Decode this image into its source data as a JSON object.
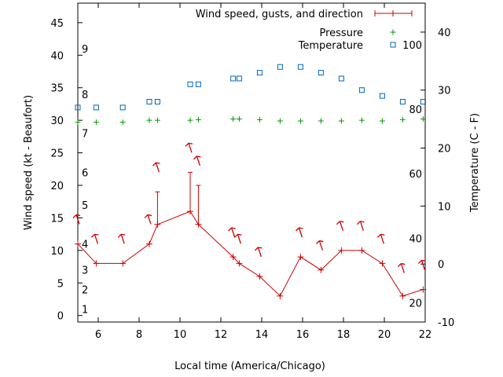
{
  "chart_data": {
    "type": "line",
    "xlabel": "Local time (America/Chicago)",
    "ylabel_left": "Wind speed (kt - Beaufort)",
    "ylabel_right": "Temperature (C - F)",
    "xlim": [
      5,
      22
    ],
    "xticks": [
      6,
      8,
      10,
      12,
      14,
      16,
      18,
      20,
      22
    ],
    "ylim_left": [
      -1,
      48
    ],
    "yticks_left": [
      0,
      5,
      10,
      15,
      20,
      25,
      30,
      35,
      40,
      45
    ],
    "ylim_right": [
      -10,
      45
    ],
    "yticks_right": [
      -10,
      0,
      10,
      20,
      30,
      40
    ],
    "beaufort_labels": [
      {
        "label": "1",
        "y": 1
      },
      {
        "label": "2",
        "y": 4
      },
      {
        "label": "3",
        "y": 7
      },
      {
        "label": "4",
        "y": 11
      },
      {
        "label": "5",
        "y": 17
      },
      {
        "label": "6",
        "y": 22
      },
      {
        "label": "7",
        "y": 28
      },
      {
        "label": "8",
        "y": 34
      },
      {
        "label": "9",
        "y": 41
      }
    ],
    "fahrenheit_labels": [
      {
        "label": "20",
        "y": -6.7
      },
      {
        "label": "40",
        "y": 4.4
      },
      {
        "label": "60",
        "y": 15.6
      },
      {
        "label": "80",
        "y": 26.7
      },
      {
        "label": "100",
        "y": 37.8
      }
    ],
    "legend": {
      "position": "top-right",
      "entries": [
        {
          "label": "Wind speed, gusts, and direction",
          "color": "#cc0000",
          "symbol": "errorbar"
        },
        {
          "label": "Pressure",
          "color": "#009900",
          "symbol": "plus"
        },
        {
          "label": "Temperature",
          "color": "#0066bb",
          "symbol": "square"
        }
      ]
    },
    "series": [
      {
        "name": "Wind speed, gusts, and direction",
        "axis": "left",
        "color": "#cc0000",
        "points": [
          {
            "x": 5.0,
            "y": 11
          },
          {
            "x": 5.9,
            "y": 8
          },
          {
            "x": 7.2,
            "y": 8
          },
          {
            "x": 8.5,
            "y": 11
          },
          {
            "x": 8.9,
            "y": 14,
            "gust": 19
          },
          {
            "x": 10.5,
            "y": 16,
            "gust": 22
          },
          {
            "x": 10.9,
            "y": 14,
            "gust": 20
          },
          {
            "x": 12.6,
            "y": 9
          },
          {
            "x": 12.9,
            "y": 8
          },
          {
            "x": 13.9,
            "y": 6
          },
          {
            "x": 14.9,
            "y": 3
          },
          {
            "x": 15.9,
            "y": 9
          },
          {
            "x": 16.9,
            "y": 7
          },
          {
            "x": 17.9,
            "y": 10
          },
          {
            "x": 18.9,
            "y": 10
          },
          {
            "x": 19.9,
            "y": 8
          },
          {
            "x": 20.9,
            "y": 3
          },
          {
            "x": 21.9,
            "y": 4
          }
        ]
      },
      {
        "name": "Pressure",
        "axis": "left",
        "color": "#009900",
        "points": [
          {
            "x": 5.0,
            "y": 29.7
          },
          {
            "x": 5.9,
            "y": 29.7
          },
          {
            "x": 7.2,
            "y": 29.7
          },
          {
            "x": 8.5,
            "y": 30.0
          },
          {
            "x": 8.9,
            "y": 30.0
          },
          {
            "x": 10.5,
            "y": 30.0
          },
          {
            "x": 10.9,
            "y": 30.1
          },
          {
            "x": 12.6,
            "y": 30.2
          },
          {
            "x": 12.9,
            "y": 30.2
          },
          {
            "x": 13.9,
            "y": 30.1
          },
          {
            "x": 14.9,
            "y": 29.9
          },
          {
            "x": 15.9,
            "y": 29.9
          },
          {
            "x": 16.9,
            "y": 29.9
          },
          {
            "x": 17.9,
            "y": 29.9
          },
          {
            "x": 18.9,
            "y": 30.0
          },
          {
            "x": 19.9,
            "y": 29.9
          },
          {
            "x": 20.9,
            "y": 30.1
          },
          {
            "x": 21.9,
            "y": 30.2
          }
        ]
      },
      {
        "name": "Temperature",
        "axis": "right",
        "color": "#0066bb",
        "points": [
          {
            "x": 5.0,
            "y": 27
          },
          {
            "x": 5.9,
            "y": 27
          },
          {
            "x": 7.2,
            "y": 27
          },
          {
            "x": 8.5,
            "y": 28
          },
          {
            "x": 8.9,
            "y": 28
          },
          {
            "x": 10.5,
            "y": 31
          },
          {
            "x": 10.9,
            "y": 31
          },
          {
            "x": 12.6,
            "y": 32
          },
          {
            "x": 12.9,
            "y": 32
          },
          {
            "x": 13.9,
            "y": 33
          },
          {
            "x": 14.9,
            "y": 34
          },
          {
            "x": 15.9,
            "y": 34
          },
          {
            "x": 16.9,
            "y": 33
          },
          {
            "x": 17.9,
            "y": 32
          },
          {
            "x": 18.9,
            "y": 30
          },
          {
            "x": 19.9,
            "y": 29
          },
          {
            "x": 20.9,
            "y": 28
          },
          {
            "x": 21.9,
            "y": 28
          }
        ]
      }
    ],
    "wind_direction_arrows": {
      "color": "#cc0000",
      "points": [
        {
          "x": 5.0,
          "y": 15
        },
        {
          "x": 5.9,
          "y": 12
        },
        {
          "x": 7.2,
          "y": 12
        },
        {
          "x": 8.5,
          "y": 15
        },
        {
          "x": 8.9,
          "y": 23
        },
        {
          "x": 10.5,
          "y": 26
        },
        {
          "x": 10.9,
          "y": 24
        },
        {
          "x": 12.6,
          "y": 13
        },
        {
          "x": 12.9,
          "y": 12
        },
        {
          "x": 13.9,
          "y": 10
        },
        {
          "x": 15.9,
          "y": 13
        },
        {
          "x": 16.9,
          "y": 11
        },
        {
          "x": 17.9,
          "y": 14
        },
        {
          "x": 18.9,
          "y": 14
        },
        {
          "x": 19.9,
          "y": 12
        },
        {
          "x": 20.9,
          "y": 7.5
        },
        {
          "x": 21.9,
          "y": 8
        }
      ]
    }
  }
}
